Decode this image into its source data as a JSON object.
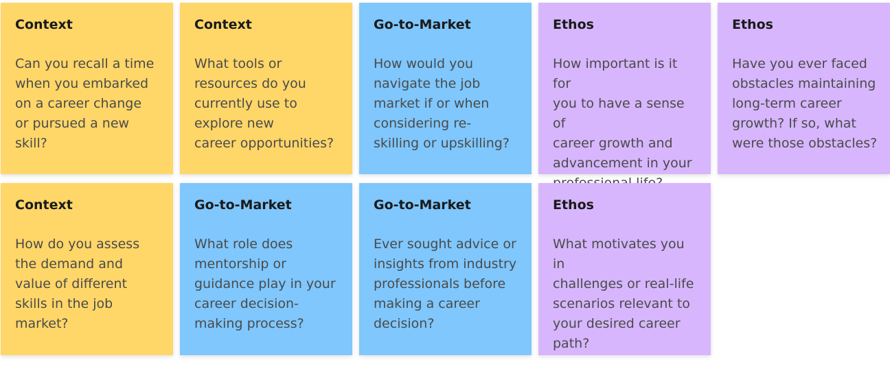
{
  "board": {
    "colors": {
      "context": "#ffd668",
      "go_to_market": "#7fc7fd",
      "ethos": "#d7b6fd"
    },
    "notes": [
      {
        "category": "Context",
        "lines": [
          "Can you recall a time",
          "when you embarked",
          "on a career change",
          "or pursued a new",
          "skill?"
        ]
      },
      {
        "category": "Context",
        "lines": [
          "What tools or",
          "resources do you",
          "currently use to",
          "explore new",
          "career opportunities?"
        ]
      },
      {
        "category": "Go-to-Market",
        "lines": [
          "How would you",
          "navigate the job",
          "market if or when",
          "considering re-",
          "skilling or upskilling?"
        ]
      },
      {
        "category": "Ethos",
        "lines": [
          "How important is it for",
          "you to have a sense of",
          "career growth and",
          "advancement in your",
          "professional life?"
        ]
      },
      {
        "category": "Ethos",
        "lines": [
          "Have you ever faced",
          "obstacles maintaining",
          "long-term career",
          "growth? If so, what",
          "were those obstacles?"
        ]
      },
      {
        "category": "Context",
        "lines": [
          "How do you assess",
          "the demand and",
          "value of different",
          "skills in the job",
          "market?"
        ]
      },
      {
        "category": "Go-to-Market",
        "lines": [
          "What role does",
          "mentorship or",
          "guidance play in your",
          "career decision-",
          "making process?"
        ]
      },
      {
        "category": "Go-to-Market",
        "lines": [
          "Ever sought advice or",
          "insights from industry",
          "professionals before",
          "making a career",
          "decision?"
        ]
      },
      {
        "category": "Ethos",
        "lines": [
          "What motivates you in",
          "challenges or real-life",
          "scenarios relevant to",
          "your desired career",
          "path?"
        ]
      }
    ]
  }
}
